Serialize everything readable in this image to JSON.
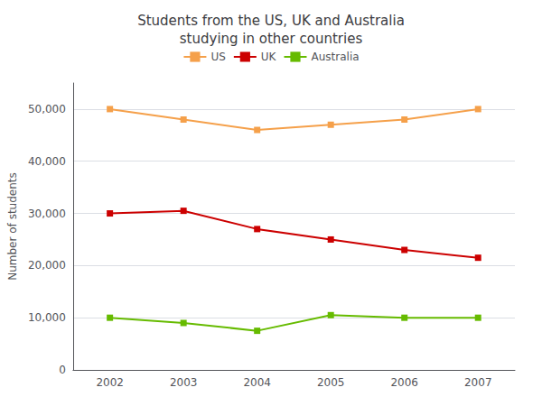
{
  "chart_data": {
    "type": "line",
    "title": "Students from the US, UK and Australia\nstudying in other countries",
    "ylabel": "Number of students",
    "categories": [
      "2002",
      "2003",
      "2004",
      "2005",
      "2006",
      "2007"
    ],
    "series": [
      {
        "name": "US",
        "color": "#F5A04A",
        "values": [
          50000,
          48000,
          46000,
          47000,
          48000,
          50000
        ]
      },
      {
        "name": "UK",
        "color": "#CC0000",
        "values": [
          30000,
          30500,
          27000,
          25000,
          23000,
          21500
        ]
      },
      {
        "name": "Australia",
        "color": "#66BB00",
        "values": [
          10000,
          9000,
          7500,
          10500,
          10000,
          10000
        ]
      }
    ],
    "ylim": [
      0,
      55000
    ],
    "yticks": [
      0,
      {
        "value": 10000,
        "label": "10,000"
      },
      {
        "value": 20000,
        "label": "20,000"
      },
      {
        "value": 30000,
        "label": "30,000"
      },
      {
        "value": 40000,
        "label": "40,000"
      },
      {
        "value": 50000,
        "label": "50,000"
      }
    ],
    "grid": true,
    "legend": "top",
    "marker": "square"
  }
}
